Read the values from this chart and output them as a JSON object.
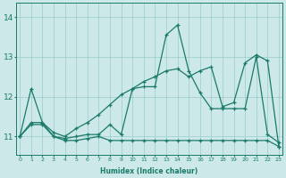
{
  "xlabel": "Humidex (Indice chaleur)",
  "bg_color": "#cce8e8",
  "grid_color": "#99cccc",
  "line_color": "#1a7a6a",
  "x_ticks": [
    0,
    1,
    2,
    3,
    4,
    5,
    6,
    7,
    8,
    9,
    10,
    11,
    12,
    13,
    14,
    15,
    16,
    17,
    18,
    19,
    20,
    21,
    22,
    23
  ],
  "y_ticks": [
    11,
    12,
    13,
    14
  ],
  "xlim": [
    -0.3,
    23.3
  ],
  "ylim": [
    10.55,
    14.35
  ],
  "curve1_x": [
    0,
    1,
    2,
    3,
    4,
    5,
    6,
    7,
    8,
    9,
    10,
    11,
    12,
    13,
    14,
    15,
    16,
    17,
    18,
    19,
    20,
    21,
    22,
    23
  ],
  "curve1_y": [
    11.0,
    12.2,
    11.35,
    11.0,
    10.95,
    11.0,
    11.05,
    11.05,
    11.3,
    11.05,
    12.2,
    12.25,
    12.25,
    13.55,
    13.8,
    12.65,
    12.1,
    11.7,
    11.7,
    11.7,
    11.7,
    13.0,
    11.05,
    10.85
  ],
  "curve2_x": [
    0,
    1,
    2,
    3,
    4,
    5,
    6,
    7,
    8,
    9,
    10,
    11,
    12,
    13,
    14,
    15,
    16,
    17,
    18,
    19,
    20,
    21,
    22,
    23
  ],
  "curve2_y": [
    11.0,
    11.3,
    11.3,
    11.0,
    10.9,
    10.9,
    10.95,
    11.0,
    10.9,
    10.9,
    10.9,
    10.9,
    10.9,
    10.9,
    10.9,
    10.9,
    10.9,
    10.9,
    10.9,
    10.9,
    10.9,
    10.9,
    10.9,
    10.75
  ],
  "curve3_x": [
    0,
    1,
    2,
    3,
    4,
    5,
    6,
    7,
    8,
    9,
    10,
    11,
    12,
    13,
    14,
    15,
    16,
    17,
    18,
    19,
    20,
    21,
    22,
    23
  ],
  "curve3_y": [
    11.0,
    11.35,
    11.35,
    11.1,
    11.0,
    11.2,
    11.35,
    11.55,
    11.8,
    12.05,
    12.2,
    12.38,
    12.5,
    12.65,
    12.7,
    12.5,
    12.65,
    12.75,
    11.75,
    11.85,
    12.85,
    13.05,
    12.9,
    10.75
  ]
}
